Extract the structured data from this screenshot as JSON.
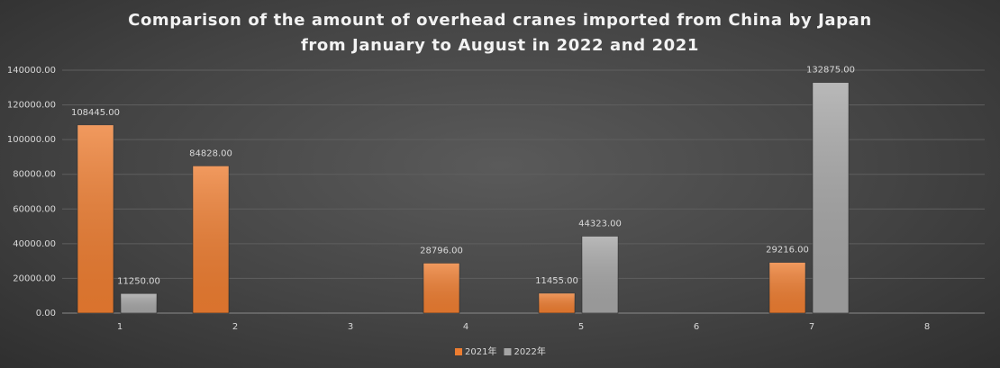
{
  "chart_data": {
    "type": "bar",
    "title": "Comparison of the amount of overhead cranes imported from China by Japan from January to August in 2022 and 2021",
    "categories": [
      "1",
      "2",
      "3",
      "4",
      "5",
      "6",
      "7",
      "8"
    ],
    "series": [
      {
        "name": "2021年",
        "color": "#ed7d31",
        "values": [
          108445,
          84828,
          null,
          28796,
          11455,
          null,
          29216,
          null
        ],
        "value_labels": [
          "108445.00",
          "84828.00",
          null,
          "28796.00",
          "11455.00",
          null,
          "29216.00",
          null
        ]
      },
      {
        "name": "2022年",
        "color": "#a5a5a5",
        "values": [
          11250,
          null,
          null,
          null,
          44323,
          null,
          132875,
          null
        ],
        "value_labels": [
          "11250.00",
          null,
          null,
          null,
          "44323.00",
          null,
          "132875.00",
          null
        ]
      }
    ],
    "ylim": [
      0,
      140000
    ],
    "yticks": [
      {
        "value": 0,
        "label": "0.00"
      },
      {
        "value": 20000,
        "label": "20000.00"
      },
      {
        "value": 40000,
        "label": "40000.00"
      },
      {
        "value": 60000,
        "label": "60000.00"
      },
      {
        "value": 80000,
        "label": "80000.00"
      },
      {
        "value": 100000,
        "label": "100000.00"
      },
      {
        "value": 120000,
        "label": "120000.00"
      },
      {
        "value": 140000,
        "label": "140000.00"
      }
    ],
    "grid": true,
    "legend": "bottom"
  }
}
